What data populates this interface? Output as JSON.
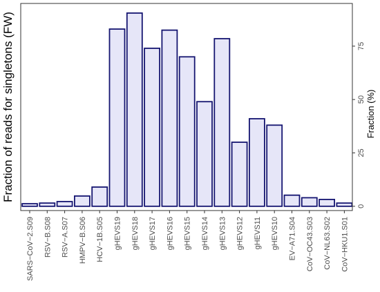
{
  "chart_data": {
    "type": "bar",
    "categories": [
      "SARS−CoV−2.S09",
      "RSV−B.S08",
      "RSV−A.S07",
      "HMPV−B.S06",
      "HCV−1B.S05",
      "gHEVS19",
      "gHEVS18",
      "gHEVS17",
      "gHEVS16",
      "gHEVS15",
      "gHEVS14",
      "gHEVS13",
      "gHEVS12",
      "gHEVS11",
      "gHEVS10",
      "EV−A71.S04",
      "CoV−OC43.S03",
      "CoV−NL63.S02",
      "CoV−HKU1.S01"
    ],
    "values": [
      1.2,
      1.5,
      2.2,
      4.8,
      9.0,
      83.0,
      90.5,
      74.0,
      82.5,
      70.0,
      49.0,
      78.5,
      30.0,
      41.0,
      38.0,
      5.2,
      4.0,
      3.2,
      1.5
    ],
    "ylabel_left": "Fraction of reads for singletons (FW)",
    "ylabel_right": "Fraction (%)",
    "yticks": [
      0,
      25,
      50,
      75
    ],
    "ylim": [
      -2,
      95
    ],
    "axis_side": "right",
    "grid": false,
    "bar_fill": "#e6e6f8",
    "bar_stroke": "#141470"
  }
}
